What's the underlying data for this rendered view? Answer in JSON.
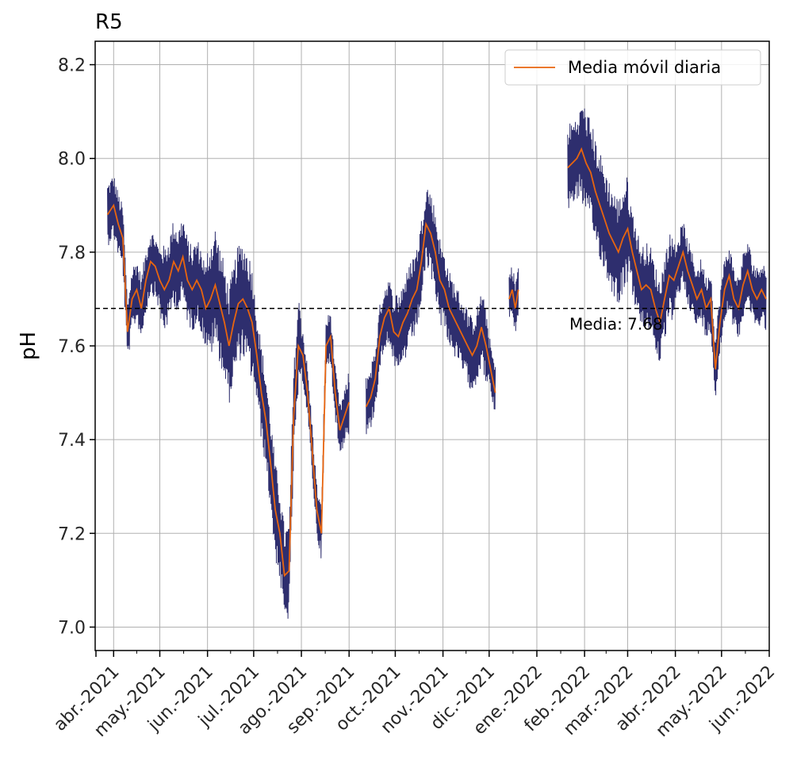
{
  "chart_data": {
    "type": "line",
    "title": "R5",
    "xlabel": "",
    "ylabel": "pH",
    "ylim": [
      6.95,
      8.25
    ],
    "yticks": [
      7.0,
      7.2,
      7.4,
      7.6,
      7.8,
      8.0,
      8.2
    ],
    "ytick_labels": [
      "7.0",
      "7.2",
      "7.4",
      "7.6",
      "7.8",
      "8.0",
      "8.2"
    ],
    "xlim": [
      "2021-03-20",
      "2022-06-01"
    ],
    "xticks": [
      "2021-04-01",
      "2021-05-01",
      "2021-06-01",
      "2021-07-01",
      "2021-08-01",
      "2021-09-01",
      "2021-10-01",
      "2021-11-01",
      "2021-12-01",
      "2022-01-01",
      "2022-02-01",
      "2022-03-01",
      "2022-04-01",
      "2022-05-01",
      "2022-06-01"
    ],
    "xtick_labels": [
      "abr.-2021",
      "may.-2021",
      "jun.-2021",
      "jul.-2021",
      "ago.-2021",
      "sep.-2021",
      "oct.-2021",
      "nov.-2021",
      "dic.-2021",
      "ene.-2022",
      "feb.-2022",
      "mar.-2022",
      "abr.-2022",
      "may.-2022",
      "jun.-2022"
    ],
    "grid": true,
    "legend": {
      "position": "top-right",
      "entries": [
        "Media móvil diaria"
      ]
    },
    "mean_line": {
      "value": 7.68,
      "label": "Media: 7.68"
    },
    "colors": {
      "raw": "#2e2e6e",
      "rolling": "#e8650f",
      "grid": "#b0b0b0",
      "mean": "#000000"
    },
    "series": [
      {
        "name": "Media móvil diaria",
        "band_halfwidth": [
          0.06,
          0.08,
          0.11,
          0.09,
          0.05,
          0.06,
          0.08,
          0.07,
          0.05,
          0.08,
          0.1,
          0.08,
          0.06
        ],
        "segments": [
          {
            "x": [
              "2021-03-28",
              "2021-04-01",
              "2021-04-04",
              "2021-04-07",
              "2021-04-10",
              "2021-04-13",
              "2021-04-16",
              "2021-04-19",
              "2021-04-22",
              "2021-04-25",
              "2021-04-28",
              "2021-05-01",
              "2021-05-04",
              "2021-05-07",
              "2021-05-10",
              "2021-05-13",
              "2021-05-16",
              "2021-05-19",
              "2021-05-22",
              "2021-05-25",
              "2021-05-28",
              "2021-05-31",
              "2021-06-03",
              "2021-06-06",
              "2021-06-09",
              "2021-06-12",
              "2021-06-15",
              "2021-06-18",
              "2021-06-21",
              "2021-06-24",
              "2021-06-27",
              "2021-06-30",
              "2021-07-03",
              "2021-07-06",
              "2021-07-09",
              "2021-07-12",
              "2021-07-15",
              "2021-07-18",
              "2021-07-21",
              "2021-07-24",
              "2021-07-27",
              "2021-07-30",
              "2021-08-02",
              "2021-08-05",
              "2021-08-08",
              "2021-08-11",
              "2021-08-14",
              "2021-08-17",
              "2021-08-20",
              "2021-08-23",
              "2021-08-26",
              "2021-08-29",
              "2021-09-01"
            ],
            "y": [
              7.88,
              7.9,
              7.86,
              7.83,
              7.63,
              7.7,
              7.72,
              7.68,
              7.74,
              7.78,
              7.77,
              7.74,
              7.72,
              7.74,
              7.78,
              7.76,
              7.79,
              7.74,
              7.72,
              7.74,
              7.72,
              7.68,
              7.7,
              7.73,
              7.69,
              7.65,
              7.6,
              7.65,
              7.69,
              7.7,
              7.68,
              7.65,
              7.58,
              7.5,
              7.44,
              7.35,
              7.25,
              7.2,
              7.11,
              7.12,
              7.45,
              7.6,
              7.58,
              7.5,
              7.38,
              7.25,
              7.2,
              7.6,
              7.62,
              7.5,
              7.42,
              7.45,
              7.48
            ]
          },
          {
            "x": [
              "2021-09-12",
              "2021-09-15",
              "2021-09-18",
              "2021-09-21",
              "2021-09-24",
              "2021-09-27",
              "2021-09-30",
              "2021-10-03",
              "2021-10-06",
              "2021-10-09",
              "2021-10-12",
              "2021-10-15",
              "2021-10-18",
              "2021-10-21",
              "2021-10-24",
              "2021-10-27",
              "2021-10-30",
              "2021-11-02",
              "2021-11-05",
              "2021-11-08",
              "2021-11-11",
              "2021-11-14",
              "2021-11-17",
              "2021-11-20",
              "2021-11-23",
              "2021-11-26",
              "2021-11-29",
              "2021-12-02",
              "2021-12-05"
            ],
            "y": [
              7.47,
              7.49,
              7.53,
              7.62,
              7.66,
              7.68,
              7.63,
              7.62,
              7.65,
              7.67,
              7.7,
              7.72,
              7.78,
              7.86,
              7.84,
              7.8,
              7.74,
              7.72,
              7.68,
              7.66,
              7.64,
              7.62,
              7.6,
              7.58,
              7.6,
              7.64,
              7.6,
              7.55,
              7.5
            ]
          },
          {
            "x": [
              "2021-12-14",
              "2021-12-16",
              "2021-12-18",
              "2021-12-20"
            ],
            "y": [
              7.7,
              7.72,
              7.68,
              7.72
            ]
          },
          {
            "x": [
              "2022-01-21",
              "2022-01-24",
              "2022-01-27",
              "2022-01-30",
              "2022-02-02",
              "2022-02-05",
              "2022-02-08",
              "2022-02-11",
              "2022-02-14",
              "2022-02-17",
              "2022-02-20",
              "2022-02-23",
              "2022-02-26",
              "2022-03-01",
              "2022-03-04",
              "2022-03-07",
              "2022-03-10",
              "2022-03-13",
              "2022-03-16",
              "2022-03-19",
              "2022-03-22",
              "2022-03-25",
              "2022-03-28",
              "2022-03-31",
              "2022-04-03",
              "2022-04-06",
              "2022-04-09",
              "2022-04-12",
              "2022-04-15",
              "2022-04-18",
              "2022-04-21",
              "2022-04-24",
              "2022-04-27",
              "2022-04-30",
              "2022-05-03",
              "2022-05-06",
              "2022-05-09",
              "2022-05-12",
              "2022-05-15",
              "2022-05-18",
              "2022-05-21",
              "2022-05-24",
              "2022-05-27",
              "2022-05-30"
            ],
            "y": [
              7.98,
              7.99,
              8.0,
              8.02,
              7.99,
              7.97,
              7.93,
              7.9,
              7.87,
              7.84,
              7.82,
              7.8,
              7.83,
              7.85,
              7.8,
              7.76,
              7.72,
              7.73,
              7.72,
              7.68,
              7.65,
              7.7,
              7.75,
              7.74,
              7.77,
              7.8,
              7.76,
              7.73,
              7.7,
              7.72,
              7.68,
              7.7,
              7.55,
              7.65,
              7.72,
              7.75,
              7.7,
              7.68,
              7.73,
              7.76,
              7.72,
              7.7,
              7.72,
              7.7
            ]
          }
        ]
      }
    ]
  }
}
